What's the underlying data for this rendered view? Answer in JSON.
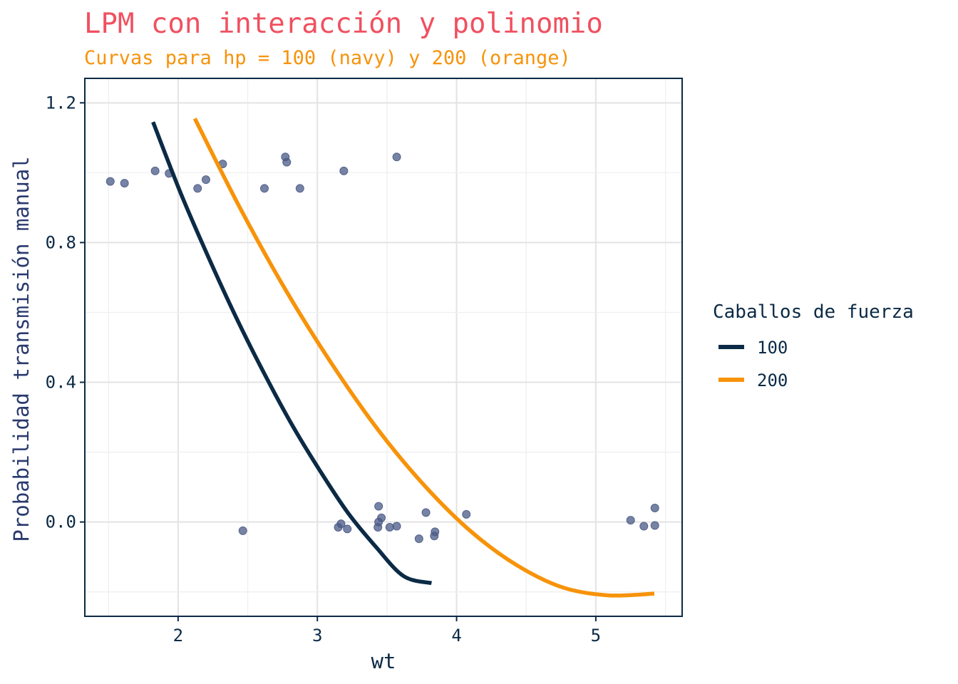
{
  "chart_data": {
    "type": "scatter",
    "title": "LPM con interacción y polinomio",
    "subtitle": "Curvas para hp = 100 (navy) y 200 (orange)",
    "xlabel": "wt",
    "ylabel": "Probabilidad transmisión manual",
    "xlim": [
      1.33,
      5.62
    ],
    "ylim": [
      -0.27,
      1.27
    ],
    "x_ticks": [
      "2",
      "3",
      "4",
      "5"
    ],
    "y_ticks": [
      "0.0",
      "0.4",
      "0.8",
      "1.2"
    ],
    "grid": true,
    "legend": {
      "title": "Caballos de fuerza",
      "placement": "right",
      "entries": [
        {
          "label": "100",
          "color": "#0b2a45"
        },
        {
          "label": "200",
          "color": "#f7930a"
        }
      ]
    },
    "colors": {
      "title": "#f05060",
      "subtitle": "#f7930a",
      "axis_title_y": "#2a3a6e",
      "axis_text": "#0b2a45",
      "points": "#4a5a86",
      "hp100": "#0b2a45",
      "hp200": "#f7930a"
    },
    "points": [
      {
        "x": 1.513,
        "y": 0.975
      },
      {
        "x": 1.615,
        "y": 0.97
      },
      {
        "x": 1.835,
        "y": 1.005
      },
      {
        "x": 1.935,
        "y": 0.998
      },
      {
        "x": 2.14,
        "y": 0.955
      },
      {
        "x": 2.2,
        "y": 0.98
      },
      {
        "x": 2.32,
        "y": 1.025
      },
      {
        "x": 2.465,
        "y": -0.025
      },
      {
        "x": 2.62,
        "y": 0.955
      },
      {
        "x": 2.77,
        "y": 1.045
      },
      {
        "x": 2.78,
        "y": 1.03
      },
      {
        "x": 2.875,
        "y": 0.955
      },
      {
        "x": 3.15,
        "y": -0.015
      },
      {
        "x": 3.17,
        "y": -0.005
      },
      {
        "x": 3.19,
        "y": 1.005
      },
      {
        "x": 3.215,
        "y": -0.02
      },
      {
        "x": 3.435,
        "y": -0.015
      },
      {
        "x": 3.44,
        "y": 0.0
      },
      {
        "x": 3.44,
        "y": 0.045
      },
      {
        "x": 3.46,
        "y": 0.012
      },
      {
        "x": 3.52,
        "y": -0.015
      },
      {
        "x": 3.57,
        "y": -0.012
      },
      {
        "x": 3.57,
        "y": 1.045
      },
      {
        "x": 3.73,
        "y": -0.048
      },
      {
        "x": 3.78,
        "y": 0.027
      },
      {
        "x": 3.84,
        "y": -0.04
      },
      {
        "x": 3.845,
        "y": -0.028
      },
      {
        "x": 4.07,
        "y": 0.022
      },
      {
        "x": 5.25,
        "y": 0.005
      },
      {
        "x": 5.345,
        "y": -0.012
      },
      {
        "x": 5.424,
        "y": 0.04
      },
      {
        "x": 5.424,
        "y": -0.01
      }
    ],
    "series": [
      {
        "name": "100",
        "x": [
          1.82,
          2.02,
          2.22,
          2.42,
          2.62,
          2.82,
          3.02,
          3.22,
          3.42,
          3.62,
          3.82
        ],
        "y": [
          1.145,
          0.94,
          0.756,
          0.583,
          0.424,
          0.277,
          0.146,
          0.026,
          -0.071,
          -0.155,
          -0.175
        ]
      },
      {
        "name": "200",
        "x": [
          2.12,
          2.45,
          2.78,
          3.11,
          3.44,
          3.77,
          4.1,
          4.43,
          4.76,
          5.09,
          5.42
        ],
        "y": [
          1.155,
          0.895,
          0.659,
          0.449,
          0.262,
          0.104,
          -0.026,
          -0.123,
          -0.187,
          -0.21,
          -0.205
        ]
      }
    ]
  }
}
